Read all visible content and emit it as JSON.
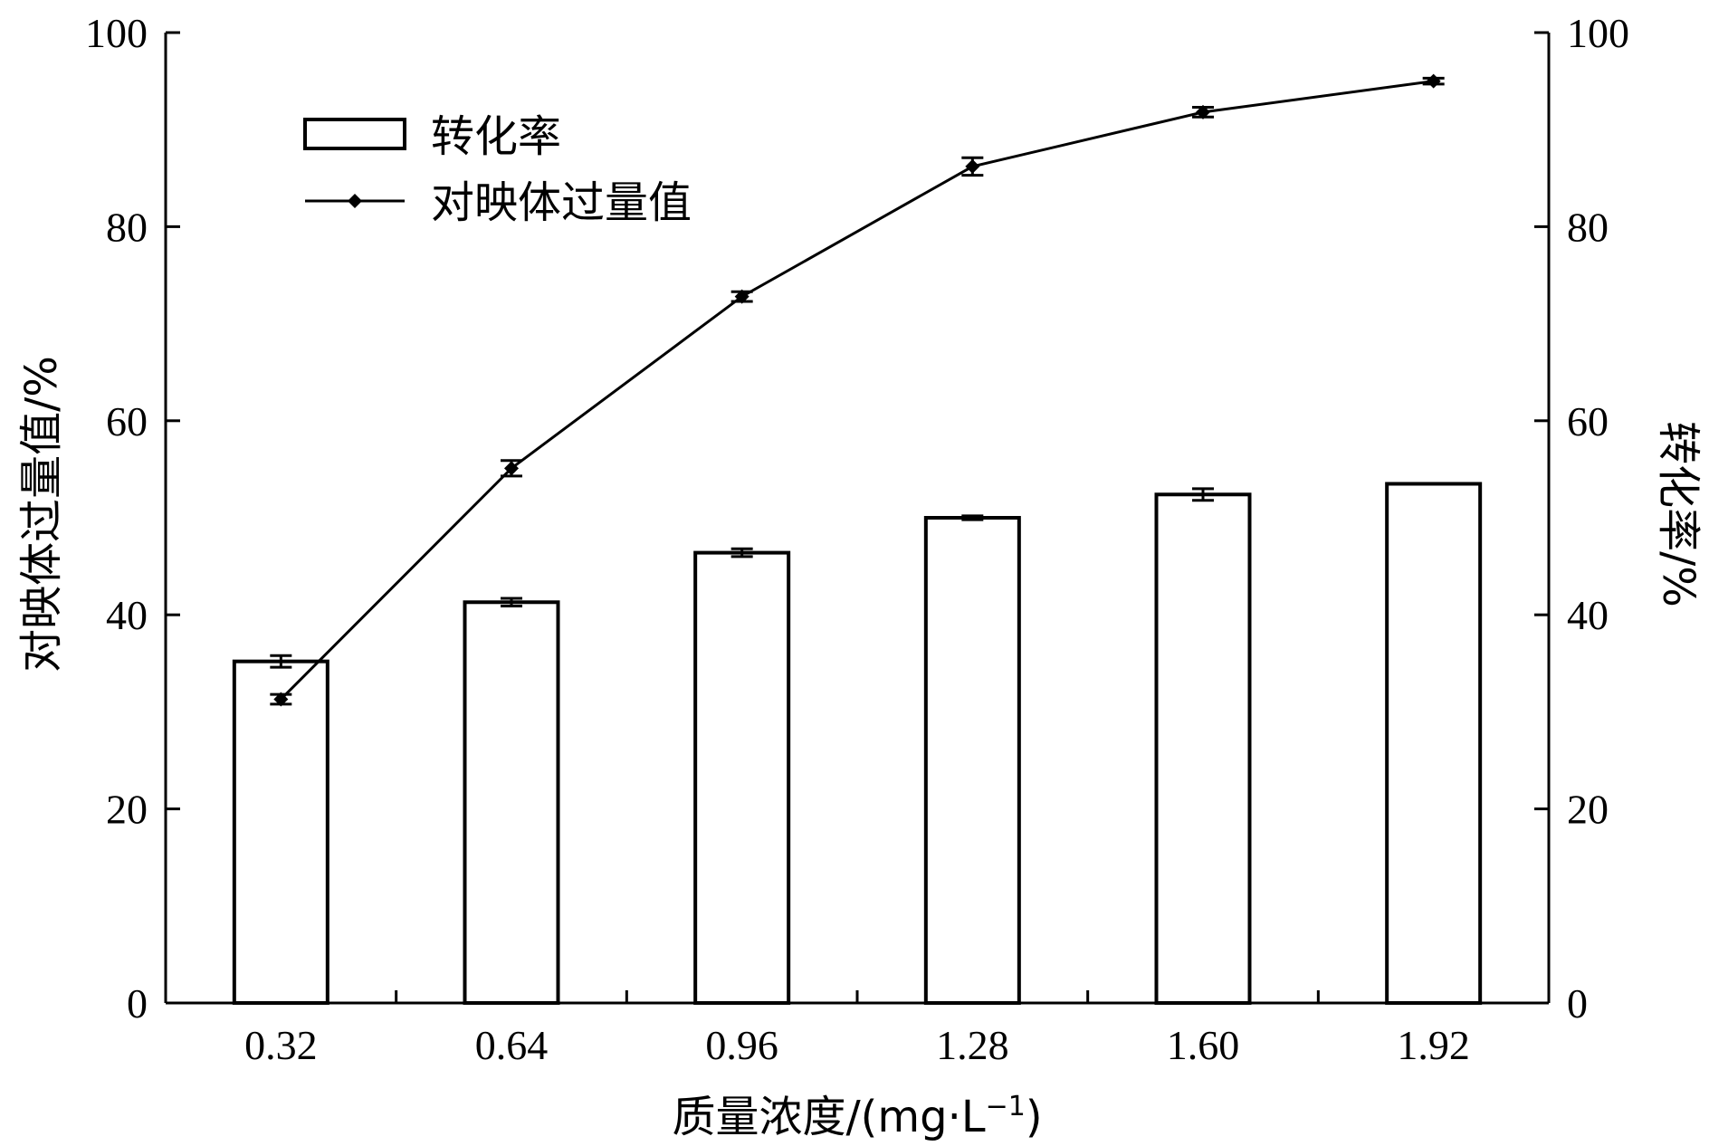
{
  "chart_data": {
    "type": "bar",
    "xlabel_main": "质量浓度/(mg·L",
    "xlabel_sup": "−1",
    "xlabel_end": ")",
    "ylabel_left": "对映体过量值/%",
    "ylabel_right": "转化率/%",
    "categories": [
      "0.32",
      "0.64",
      "0.96",
      "1.28",
      "1.60",
      "1.92"
    ],
    "ylim_left": [
      0,
      100
    ],
    "ylim_right": [
      0,
      100
    ],
    "yticks": [
      "0",
      "20",
      "40",
      "60",
      "80",
      "100"
    ],
    "grid": false,
    "legend_position": "top-left",
    "series": [
      {
        "name": "转化率",
        "kind": "bar",
        "axis": "right",
        "values": [
          35.2,
          41.3,
          46.4,
          50.0,
          52.4,
          53.5
        ],
        "errors": [
          0.6,
          0.4,
          0.4,
          0.2,
          0.6,
          0
        ]
      },
      {
        "name": "对映体过量值",
        "kind": "line",
        "axis": "left",
        "marker": "diamond",
        "values": [
          31.3,
          55.1,
          72.8,
          86.2,
          91.8,
          95.0
        ],
        "errors": [
          0.5,
          0.8,
          0.5,
          0.9,
          0.5,
          0.3
        ]
      }
    ]
  }
}
